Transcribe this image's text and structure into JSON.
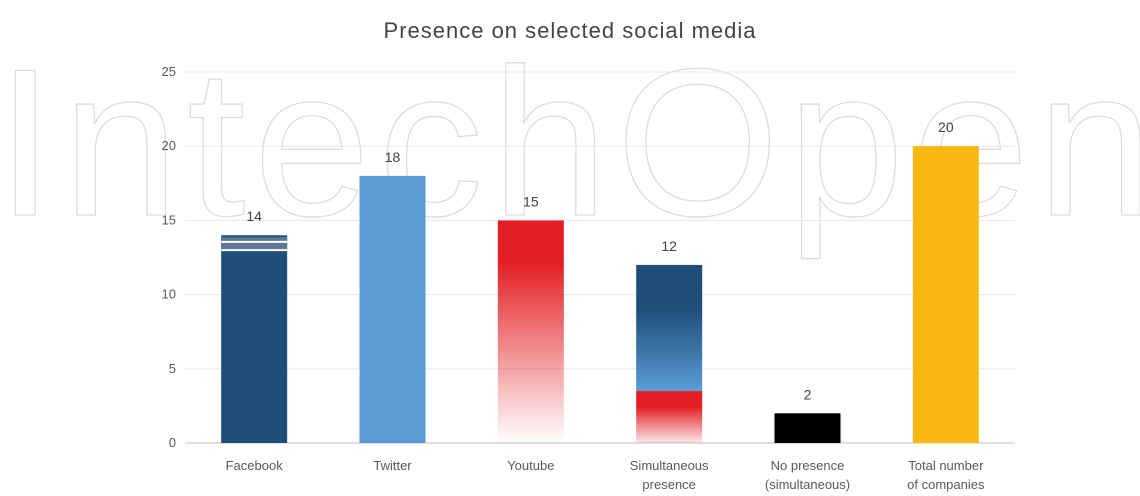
{
  "chart_data": {
    "type": "bar",
    "title": "Presence on selected social media",
    "categories": [
      [
        "Facebook"
      ],
      [
        "Twitter"
      ],
      [
        "Youtube"
      ],
      [
        "Simultaneous",
        "presence"
      ],
      [
        "No presence",
        "(simultaneous)"
      ],
      [
        "Total number",
        "of companies"
      ]
    ],
    "values": [
      14,
      18,
      15,
      12,
      2,
      20
    ],
    "data_labels": [
      "14",
      "18",
      "15",
      "12",
      "2",
      "20"
    ],
    "colors": [
      "#1f4e79",
      "#5b9bd5",
      "#e31e24",
      "#1f4e79",
      "#000000",
      "#f9b80f"
    ],
    "ylim": [
      0,
      25
    ],
    "yticks": [
      0,
      5,
      10,
      15,
      20,
      25
    ],
    "grid": true,
    "legend": "none"
  },
  "watermark": {
    "text": "IntechOpen"
  }
}
